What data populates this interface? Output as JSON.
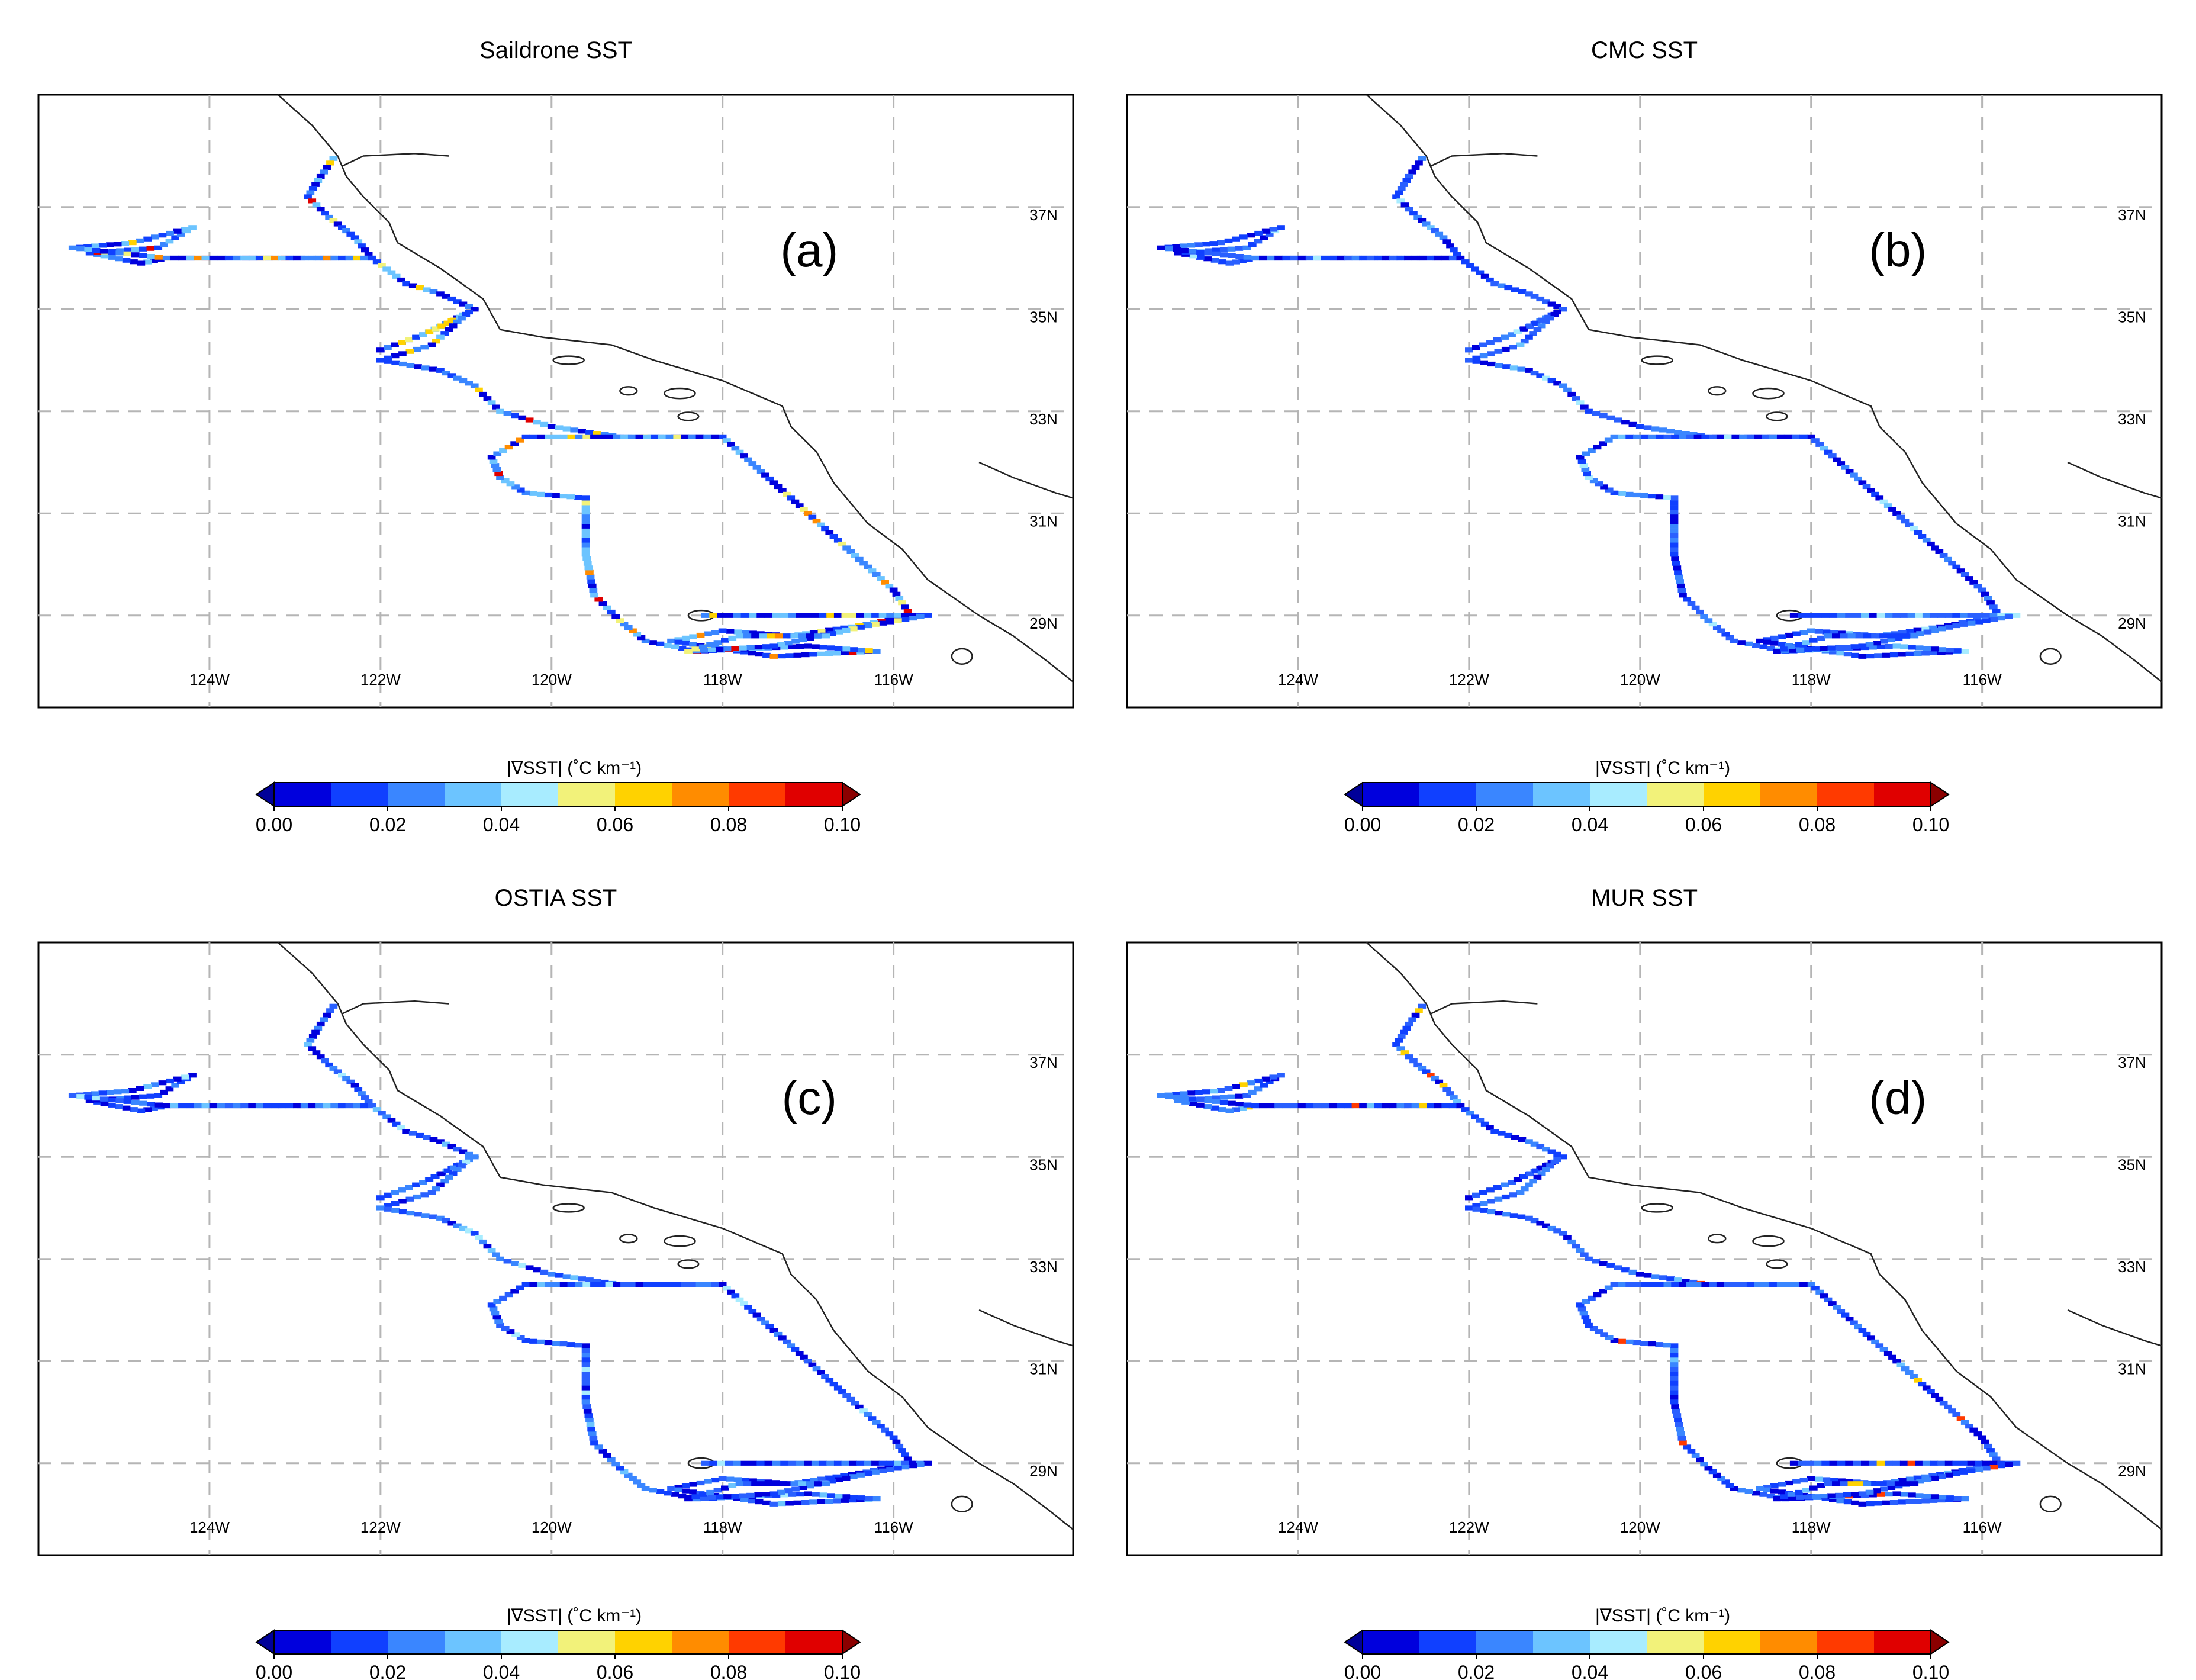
{
  "panels": [
    {
      "title": "Saildrone SST",
      "label": "(a)",
      "style": "a"
    },
    {
      "title": "CMC SST",
      "label": "(b)",
      "style": "b"
    },
    {
      "title": "OSTIA SST",
      "label": "(c)",
      "style": "c"
    },
    {
      "title": "MUR SST",
      "label": "(d)",
      "style": "d"
    }
  ],
  "lon_ticks": [
    "124W",
    "122W",
    "120W",
    "118W",
    "116W"
  ],
  "lat_ticks": [
    "37N",
    "35N",
    "33N",
    "31N",
    "29N"
  ],
  "colorbar": {
    "label": "|∇SST| (˚C km⁻¹)",
    "ticks": [
      "0.00",
      "0.02",
      "0.04",
      "0.06",
      "0.08",
      "0.10"
    ],
    "colors": [
      "#000099",
      "#0000dd",
      "#1040ff",
      "#3a86ff",
      "#6cc4ff",
      "#a8ecff",
      "#f2f27a",
      "#ffd200",
      "#ff8c00",
      "#ff3a00",
      "#e00000",
      "#8b0000"
    ]
  },
  "map": {
    "lon_range": [
      -126.0,
      -113.9
    ],
    "lat_range": [
      27.2,
      39.2
    ],
    "coastline": [
      [
        -123.2,
        39.2
      ],
      [
        -122.8,
        38.6
      ],
      [
        -122.5,
        38.0
      ],
      [
        -122.4,
        37.6
      ],
      [
        -122.2,
        37.2
      ],
      [
        -121.9,
        36.7
      ],
      [
        -121.8,
        36.3
      ],
      [
        -121.3,
        35.8
      ],
      [
        -120.8,
        35.2
      ],
      [
        -120.6,
        34.6
      ],
      [
        -120.1,
        34.45
      ],
      [
        -119.3,
        34.3
      ],
      [
        -118.8,
        34.0
      ],
      [
        -118.4,
        33.8
      ],
      [
        -118.0,
        33.6
      ],
      [
        -117.3,
        33.1
      ],
      [
        -117.2,
        32.7
      ],
      [
        -116.9,
        32.2
      ],
      [
        -116.7,
        31.6
      ],
      [
        -116.3,
        30.8
      ],
      [
        -115.9,
        30.3
      ],
      [
        -115.6,
        29.7
      ],
      [
        -115.0,
        29.0
      ],
      [
        -114.6,
        28.6
      ],
      [
        -114.2,
        28.1
      ],
      [
        -113.9,
        27.7
      ]
    ],
    "bay_inlet": [
      [
        -122.45,
        37.8
      ],
      [
        -122.2,
        38.0
      ],
      [
        -121.6,
        38.05
      ],
      [
        -121.2,
        38.0
      ]
    ],
    "gulf_coast": [
      [
        -115.0,
        32.0
      ],
      [
        -114.6,
        31.7
      ],
      [
        -114.1,
        31.4
      ],
      [
        -113.9,
        31.3
      ]
    ],
    "islands": [
      [
        -119.8,
        34.0,
        0.18,
        0.08
      ],
      [
        -119.1,
        33.4,
        0.1,
        0.08
      ],
      [
        -118.5,
        33.35,
        0.18,
        0.1
      ],
      [
        -118.4,
        32.9,
        0.12,
        0.08
      ],
      [
        -118.25,
        29.0,
        0.15,
        0.1
      ],
      [
        -115.2,
        28.2,
        0.12,
        0.15
      ]
    ],
    "track": [
      [
        -122.55,
        37.95
      ],
      [
        -122.7,
        37.6
      ],
      [
        -122.85,
        37.2
      ],
      [
        -122.6,
        36.8
      ],
      [
        -122.3,
        36.4
      ],
      [
        -122.1,
        36.0
      ],
      [
        -123.3,
        36.0
      ],
      [
        -124.5,
        36.0
      ],
      [
        -124.8,
        35.9
      ],
      [
        -125.4,
        36.1
      ],
      [
        -124.6,
        36.2
      ],
      [
        -124.2,
        36.6
      ],
      [
        -124.9,
        36.3
      ],
      [
        -125.6,
        36.2
      ],
      [
        -124.5,
        36.0
      ],
      [
        -123.5,
        36.0
      ],
      [
        -122.1,
        36.0
      ],
      [
        -121.7,
        35.5
      ],
      [
        -121.3,
        35.3
      ],
      [
        -120.9,
        35.0
      ],
      [
        -121.5,
        34.5
      ],
      [
        -122.0,
        34.2
      ],
      [
        -121.5,
        34.5
      ],
      [
        -121.0,
        34.9
      ],
      [
        -121.4,
        34.3
      ],
      [
        -122.0,
        34.0
      ],
      [
        -121.3,
        33.8
      ],
      [
        -120.9,
        33.5
      ],
      [
        -120.6,
        33.0
      ],
      [
        -120.0,
        32.7
      ],
      [
        -119.2,
        32.5
      ],
      [
        -118.0,
        32.5
      ],
      [
        -117.6,
        31.9
      ],
      [
        -117.2,
        31.3
      ],
      [
        -116.8,
        30.7
      ],
      [
        -116.4,
        30.1
      ],
      [
        -116.0,
        29.5
      ],
      [
        -115.8,
        29.0
      ],
      [
        -116.4,
        28.8
      ],
      [
        -117.2,
        28.6
      ],
      [
        -118.0,
        28.7
      ],
      [
        -118.6,
        28.5
      ],
      [
        -117.4,
        28.2
      ],
      [
        -116.2,
        28.3
      ],
      [
        -117.0,
        28.4
      ],
      [
        -118.3,
        28.3
      ],
      [
        -118.9,
        28.5
      ],
      [
        -119.2,
        28.9
      ],
      [
        -119.5,
        29.4
      ],
      [
        -119.6,
        30.2
      ],
      [
        -119.6,
        31.3
      ],
      [
        -120.3,
        31.4
      ],
      [
        -120.6,
        31.7
      ],
      [
        -120.7,
        32.1
      ],
      [
        -120.3,
        32.5
      ],
      [
        -119.5,
        32.5
      ],
      [
        -118.0,
        32.5
      ]
    ],
    "track_b": [
      [
        -118.2,
        29.0
      ],
      [
        -117.0,
        29.0
      ],
      [
        -115.6,
        29.0
      ],
      [
        -116.3,
        28.8
      ],
      [
        -117.4,
        28.4
      ],
      [
        -118.4,
        28.3
      ],
      [
        -117.8,
        28.6
      ],
      [
        -116.7,
        28.6
      ]
    ]
  }
}
